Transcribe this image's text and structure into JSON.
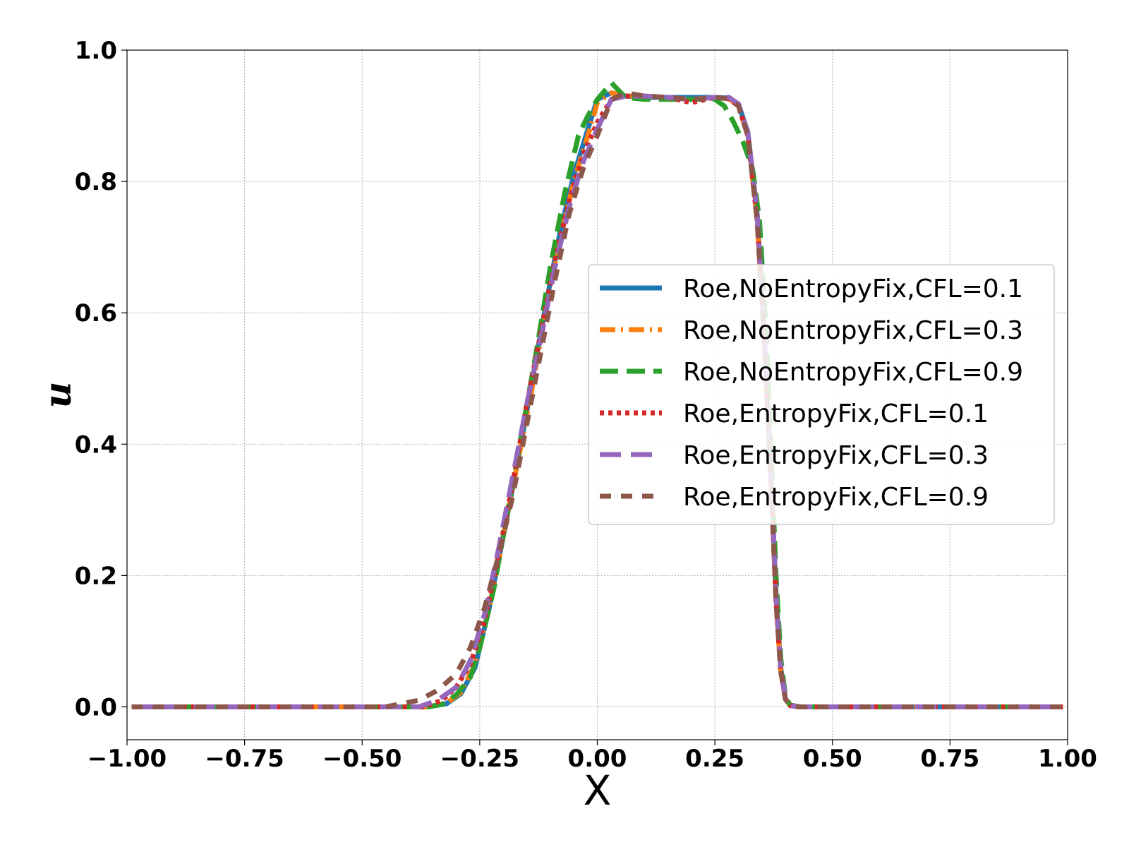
{
  "chart_data": {
    "type": "line",
    "title": "",
    "xlabel": "X",
    "ylabel": "u",
    "xlim": [
      -1.0,
      1.0
    ],
    "ylim": [
      -0.05,
      1.0
    ],
    "xticks": [
      "−1.00",
      "−0.75",
      "−0.50",
      "−0.25",
      "0.00",
      "0.25",
      "0.50",
      "0.75",
      "1.00"
    ],
    "xtick_values": [
      -1.0,
      -0.75,
      -0.5,
      -0.25,
      0.0,
      0.25,
      0.5,
      0.75,
      1.0
    ],
    "yticks": [
      "0.0",
      "0.2",
      "0.4",
      "0.6",
      "0.8",
      "1.0"
    ],
    "ytick_values": [
      0.0,
      0.2,
      0.4,
      0.6,
      0.8,
      1.0
    ],
    "grid": true,
    "legend_position": "center-right",
    "series": [
      {
        "name": "Roe,NoEntropyFix,CFL=0.1",
        "color": "#1f77b4",
        "style": "solid",
        "x": [
          -0.99,
          -0.5,
          -0.36,
          -0.32,
          -0.29,
          -0.26,
          -0.23,
          -0.2,
          -0.17,
          -0.14,
          -0.11,
          -0.08,
          -0.05,
          -0.02,
          0.0,
          0.03,
          0.06,
          0.1,
          0.15,
          0.2,
          0.25,
          0.28,
          0.3,
          0.32,
          0.34,
          0.355,
          0.37,
          0.38,
          0.39,
          0.4,
          0.41,
          0.43,
          0.45,
          0.5,
          0.99
        ],
        "y": [
          0.0,
          0.0,
          0.0,
          0.005,
          0.02,
          0.06,
          0.15,
          0.26,
          0.37,
          0.49,
          0.61,
          0.72,
          0.81,
          0.88,
          0.925,
          0.935,
          0.93,
          0.928,
          0.928,
          0.928,
          0.928,
          0.927,
          0.918,
          0.875,
          0.75,
          0.57,
          0.34,
          0.17,
          0.06,
          0.012,
          0.002,
          0.0,
          0.0,
          0.0,
          0.0
        ]
      },
      {
        "name": "Roe,NoEntropyFix,CFL=0.3",
        "color": "#ff7f0e",
        "style": "dashdot",
        "x": [
          -0.99,
          -0.5,
          -0.36,
          -0.32,
          -0.29,
          -0.26,
          -0.23,
          -0.2,
          -0.17,
          -0.14,
          -0.11,
          -0.08,
          -0.05,
          -0.02,
          0.0,
          0.03,
          0.06,
          0.1,
          0.15,
          0.2,
          0.25,
          0.28,
          0.3,
          0.32,
          0.34,
          0.355,
          0.37,
          0.38,
          0.39,
          0.4,
          0.41,
          0.43,
          0.45,
          0.5,
          0.99
        ],
        "y": [
          0.0,
          0.0,
          0.0,
          0.006,
          0.022,
          0.065,
          0.15,
          0.26,
          0.37,
          0.48,
          0.6,
          0.71,
          0.8,
          0.87,
          0.92,
          0.935,
          0.93,
          0.93,
          0.928,
          0.925,
          0.928,
          0.926,
          0.915,
          0.87,
          0.74,
          0.56,
          0.33,
          0.16,
          0.055,
          0.012,
          0.002,
          0.0,
          0.0,
          0.0,
          0.0
        ]
      },
      {
        "name": "Roe,NoEntropyFix,CFL=0.9",
        "color": "#2ca02c",
        "style": "dashed",
        "x": [
          -0.99,
          -0.5,
          -0.36,
          -0.33,
          -0.3,
          -0.27,
          -0.25,
          -0.22,
          -0.19,
          -0.16,
          -0.13,
          -0.1,
          -0.07,
          -0.04,
          -0.02,
          0.0,
          0.03,
          0.06,
          0.1,
          0.15,
          0.2,
          0.25,
          0.27,
          0.29,
          0.31,
          0.33,
          0.345,
          0.36,
          0.37,
          0.38,
          0.39,
          0.4,
          0.41,
          0.43,
          0.5,
          0.99
        ],
        "y": [
          0.0,
          0.0,
          0.0,
          0.004,
          0.018,
          0.045,
          0.09,
          0.18,
          0.3,
          0.42,
          0.54,
          0.67,
          0.78,
          0.87,
          0.9,
          0.925,
          0.95,
          0.928,
          0.925,
          0.925,
          0.925,
          0.925,
          0.915,
          0.89,
          0.86,
          0.82,
          0.74,
          0.56,
          0.38,
          0.2,
          0.075,
          0.015,
          0.003,
          0.0,
          0.0,
          0.0
        ]
      },
      {
        "name": "Roe,EntropyFix,CFL=0.1",
        "color": "#d62728",
        "style": "dotted",
        "x": [
          -0.99,
          -0.5,
          -0.37,
          -0.33,
          -0.3,
          -0.27,
          -0.24,
          -0.21,
          -0.18,
          -0.15,
          -0.12,
          -0.09,
          -0.06,
          -0.03,
          0.0,
          0.03,
          0.06,
          0.1,
          0.15,
          0.2,
          0.25,
          0.28,
          0.3,
          0.32,
          0.34,
          0.355,
          0.37,
          0.38,
          0.39,
          0.4,
          0.41,
          0.43,
          0.45,
          0.5,
          0.99
        ],
        "y": [
          0.0,
          0.0,
          0.0,
          0.01,
          0.03,
          0.065,
          0.13,
          0.23,
          0.34,
          0.46,
          0.57,
          0.68,
          0.77,
          0.84,
          0.89,
          0.925,
          0.93,
          0.93,
          0.928,
          0.92,
          0.928,
          0.926,
          0.915,
          0.87,
          0.74,
          0.56,
          0.33,
          0.16,
          0.055,
          0.012,
          0.002,
          0.0,
          0.0,
          0.0,
          0.0
        ]
      },
      {
        "name": "Roe,EntropyFix,CFL=0.3",
        "color": "#9467bd",
        "style": "dashed",
        "x": [
          -0.99,
          -0.5,
          -0.38,
          -0.34,
          -0.3,
          -0.27,
          -0.24,
          -0.21,
          -0.18,
          -0.15,
          -0.12,
          -0.09,
          -0.06,
          -0.03,
          0.0,
          0.03,
          0.06,
          0.1,
          0.15,
          0.2,
          0.25,
          0.28,
          0.3,
          0.32,
          0.34,
          0.355,
          0.37,
          0.38,
          0.39,
          0.4,
          0.41,
          0.43,
          0.45,
          0.5,
          0.99
        ],
        "y": [
          0.0,
          0.0,
          0.0,
          0.01,
          0.03,
          0.07,
          0.14,
          0.24,
          0.35,
          0.46,
          0.56,
          0.67,
          0.76,
          0.83,
          0.88,
          0.925,
          0.93,
          0.93,
          0.928,
          0.925,
          0.928,
          0.928,
          0.918,
          0.875,
          0.75,
          0.57,
          0.34,
          0.17,
          0.06,
          0.012,
          0.002,
          0.0,
          0.0,
          0.0,
          0.0
        ]
      },
      {
        "name": "Roe,EntropyFix,CFL=0.9",
        "color": "#8c564b",
        "style": "dashed",
        "x": [
          -0.99,
          -0.5,
          -0.45,
          -0.38,
          -0.34,
          -0.3,
          -0.27,
          -0.24,
          -0.21,
          -0.18,
          -0.15,
          -0.12,
          -0.09,
          -0.06,
          -0.03,
          0.0,
          0.03,
          0.06,
          0.1,
          0.15,
          0.2,
          0.25,
          0.28,
          0.3,
          0.32,
          0.34,
          0.355,
          0.37,
          0.38,
          0.39,
          0.4,
          0.41,
          0.43,
          0.45,
          0.5,
          0.99
        ],
        "y": [
          0.0,
          0.0,
          0.0,
          0.01,
          0.025,
          0.05,
          0.09,
          0.15,
          0.23,
          0.32,
          0.43,
          0.54,
          0.65,
          0.75,
          0.82,
          0.87,
          0.925,
          0.935,
          0.93,
          0.928,
          0.925,
          0.928,
          0.926,
          0.915,
          0.87,
          0.74,
          0.56,
          0.33,
          0.16,
          0.055,
          0.012,
          0.002,
          0.0,
          0.0,
          0.0,
          0.0
        ]
      }
    ]
  }
}
